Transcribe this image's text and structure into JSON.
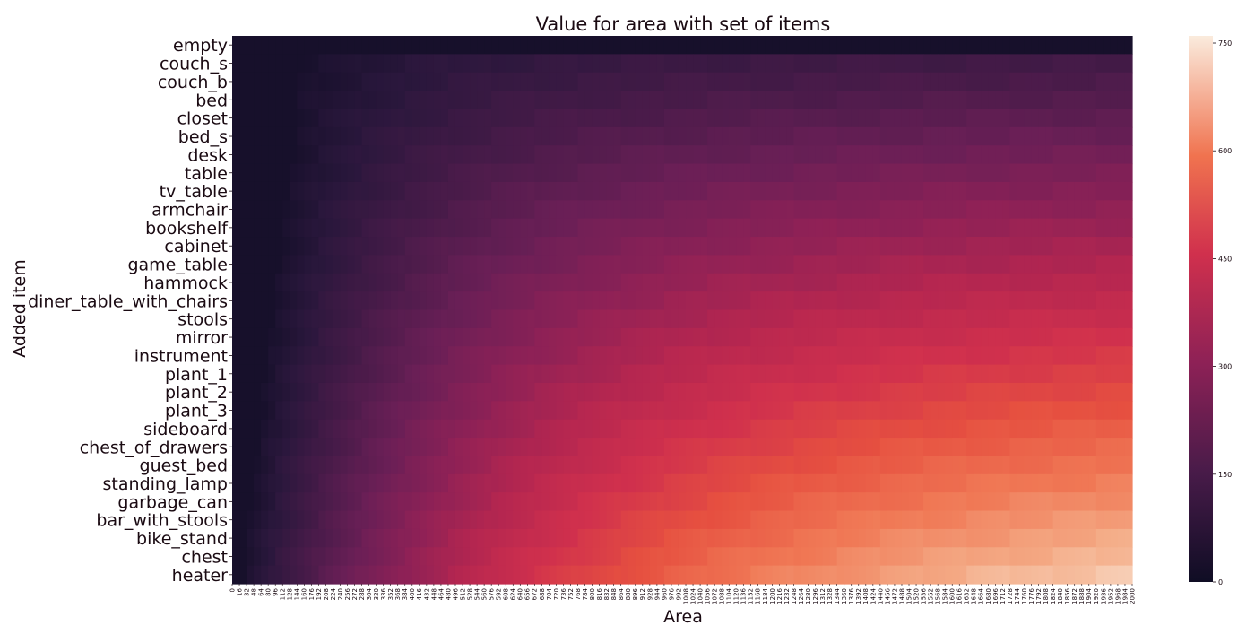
{
  "chart_data": {
    "type": "heatmap",
    "title": "Value for area with set of items",
    "xlabel": "Area",
    "ylabel": "Added item",
    "rows": [
      "empty",
      "couch_s",
      "couch_b",
      "bed",
      "closet",
      "bed_s",
      "desk",
      "table",
      "tv_table",
      "armchair",
      "bookshelf",
      "cabinet",
      "game_table",
      "hammock",
      "diner_table_with_chairs",
      "stools",
      "mirror",
      "instrument",
      "plant_1",
      "plant_2",
      "plant_3",
      "sideboard",
      "chest_of_drawers",
      "guest_bed",
      "standing_lamp",
      "garbage_can",
      "bar_with_stools",
      "bike_stand",
      "chest",
      "heater"
    ],
    "x_ticks": [
      "0",
      "16",
      "32",
      "48",
      "64",
      "80",
      "96",
      "112",
      "128",
      "144",
      "160",
      "176",
      "192",
      "208",
      "224",
      "240",
      "256",
      "272",
      "288",
      "304",
      "320",
      "336",
      "352",
      "368",
      "384",
      "400",
      "416",
      "432",
      "448",
      "464",
      "480",
      "496",
      "512",
      "528",
      "544",
      "560",
      "576",
      "592",
      "608",
      "624",
      "640",
      "656",
      "672",
      "688",
      "704",
      "720",
      "736",
      "752",
      "768",
      "784",
      "800",
      "816",
      "832",
      "848",
      "864",
      "880",
      "896",
      "912",
      "928",
      "944",
      "960",
      "976",
      "992",
      "1008",
      "1024",
      "1040",
      "1056",
      "1072",
      "1088",
      "1104",
      "1120",
      "1136",
      "1152",
      "1168",
      "1184",
      "1200",
      "1216",
      "1232",
      "1248",
      "1264",
      "1280",
      "1296",
      "1312",
      "1328",
      "1344",
      "1360",
      "1376",
      "1392",
      "1408",
      "1424",
      "1440",
      "1456",
      "1472",
      "1488",
      "1504",
      "1520",
      "1536",
      "1552",
      "1568",
      "1584",
      "1600",
      "1616",
      "1632",
      "1648",
      "1664",
      "1680",
      "1696",
      "1712",
      "1728",
      "1744",
      "1760",
      "1776",
      "1792",
      "1808",
      "1824",
      "1840",
      "1856",
      "1872",
      "1888",
      "1904",
      "1920",
      "1936",
      "1952",
      "1968",
      "1984",
      "2000"
    ],
    "x_range": [
      0,
      2000
    ],
    "colorbar": {
      "min": 0,
      "max": 760,
      "ticks": [
        "0",
        "150",
        "300",
        "450",
        "600",
        "750"
      ]
    },
    "colormap": "rocket",
    "legend_position": "right"
  }
}
